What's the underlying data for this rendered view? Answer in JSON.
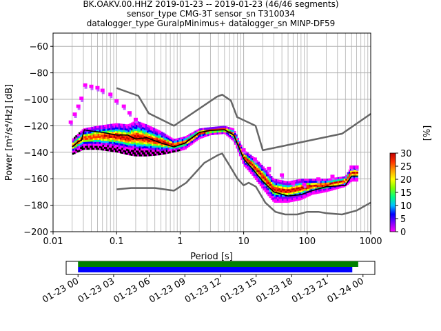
{
  "chart_data": {
    "type": "heatmap",
    "title_lines": [
      "BK.OAKV.00.HHZ   2019-01-23 -- 2019-01-23  (46/46 segments)",
      "sensor_type CMG-3T sensor_sn T310034",
      "datalogger_type GuralpMinimus+ datalogger_sn MINP-DF59"
    ],
    "xlabel": "Period [s]",
    "ylabel": "Power [m²/s⁴/Hz] [dB]",
    "x_scale": "log",
    "xlim": [
      0.01,
      1000
    ],
    "ylim": [
      -200,
      -50
    ],
    "x_ticks": [
      {
        "value": 0.01,
        "label": "0.01"
      },
      {
        "value": 0.1,
        "label": "0.1"
      },
      {
        "value": 1,
        "label": "1"
      },
      {
        "value": 10,
        "label": "10"
      },
      {
        "value": 100,
        "label": "100"
      },
      {
        "value": 1000,
        "label": "1000"
      }
    ],
    "y_ticks": [
      {
        "value": -60,
        "label": "−60"
      },
      {
        "value": -80,
        "label": "−80"
      },
      {
        "value": -100,
        "label": "−100"
      },
      {
        "value": -120,
        "label": "−120"
      },
      {
        "value": -140,
        "label": "−140"
      },
      {
        "value": -160,
        "label": "−160"
      },
      {
        "value": -180,
        "label": "−180"
      },
      {
        "value": -200,
        "label": "−200"
      }
    ],
    "grid": true,
    "colorbar": {
      "label": "[%]",
      "range": [
        0,
        30
      ],
      "ticks": [
        "0",
        "5",
        "10",
        "15",
        "20",
        "25",
        "30"
      ],
      "colors": [
        "#ff00ff",
        "#8000ff",
        "#0000ff",
        "#00c0ff",
        "#00ff80",
        "#80ff00",
        "#ffff00",
        "#ffa000",
        "#ff3000",
        "#c00000"
      ]
    },
    "nlnm": {
      "name": "NLNM",
      "color": "#666666",
      "points": [
        [
          0.1,
          -168
        ],
        [
          0.17,
          -167
        ],
        [
          0.4,
          -167
        ],
        [
          0.8,
          -169
        ],
        [
          1.25,
          -163
        ],
        [
          2.4,
          -148
        ],
        [
          4.0,
          -142
        ],
        [
          4.6,
          -141
        ],
        [
          6.0,
          -150
        ],
        [
          8.0,
          -160
        ],
        [
          10.0,
          -165
        ],
        [
          12.0,
          -163
        ],
        [
          15.6,
          -166
        ],
        [
          21.9,
          -178
        ],
        [
          31.6,
          -185
        ],
        [
          45,
          -187
        ],
        [
          70,
          -187
        ],
        [
          100,
          -185
        ],
        [
          150,
          -185
        ],
        [
          200,
          -186
        ],
        [
          354,
          -187
        ],
        [
          600,
          -184
        ],
        [
          1000,
          -178
        ]
      ]
    },
    "nhnm": {
      "name": "NHNM",
      "color": "#666666",
      "points": [
        [
          0.1,
          -91.5
        ],
        [
          0.22,
          -97.4
        ],
        [
          0.32,
          -110.5
        ],
        [
          0.8,
          -120
        ],
        [
          3.8,
          -98
        ],
        [
          4.6,
          -96.5
        ],
        [
          6.3,
          -101
        ],
        [
          7.9,
          -113.5
        ],
        [
          15.4,
          -120
        ],
        [
          20,
          -138.5
        ],
        [
          354,
          -126
        ],
        [
          1000,
          -111
        ]
      ]
    },
    "mode_line": {
      "name": "mode",
      "color": "#000000",
      "points": [
        [
          0.02,
          -136
        ],
        [
          0.025,
          -132
        ],
        [
          0.028,
          -131
        ],
        [
          0.031,
          -123
        ],
        [
          0.04,
          -124
        ],
        [
          0.06,
          -125
        ],
        [
          0.1,
          -127
        ],
        [
          0.15,
          -127
        ],
        [
          0.2,
          -130
        ],
        [
          0.3,
          -129
        ],
        [
          0.5,
          -133
        ],
        [
          0.8,
          -136
        ],
        [
          1.2,
          -133
        ],
        [
          2.0,
          -125
        ],
        [
          3.0,
          -123.5
        ],
        [
          5.0,
          -123
        ],
        [
          7.0,
          -127
        ],
        [
          10.0,
          -145
        ],
        [
          14.0,
          -153
        ],
        [
          20.0,
          -162
        ],
        [
          30.0,
          -170
        ],
        [
          50.0,
          -173
        ],
        [
          80.0,
          -172
        ],
        [
          120,
          -169
        ],
        [
          200,
          -166
        ],
        [
          400,
          -165
        ],
        [
          500,
          -158
        ],
        [
          630,
          -158
        ]
      ]
    },
    "density_band": {
      "description": "probability density band, colored by percentage",
      "points": [
        [
          0.02,
          -142,
          -130
        ],
        [
          0.03,
          -138,
          -122
        ],
        [
          0.05,
          -138,
          -120
        ],
        [
          0.1,
          -140,
          -118
        ],
        [
          0.15,
          -142,
          -119
        ],
        [
          0.2,
          -143,
          -116
        ],
        [
          0.3,
          -143,
          -119
        ],
        [
          0.5,
          -142,
          -124
        ],
        [
          0.8,
          -140,
          -130
        ],
        [
          1.2,
          -138,
          -128
        ],
        [
          2.0,
          -130,
          -122
        ],
        [
          3.0,
          -127,
          -121
        ],
        [
          5.0,
          -126,
          -120
        ],
        [
          7.0,
          -132,
          -122
        ],
        [
          10.0,
          -150,
          -138
        ],
        [
          14.0,
          -158,
          -143
        ],
        [
          20.0,
          -168,
          -150
        ],
        [
          30.0,
          -178,
          -160
        ],
        [
          50.0,
          -178,
          -162
        ],
        [
          80.0,
          -176,
          -160
        ],
        [
          120,
          -172,
          -160
        ],
        [
          200,
          -170,
          -160
        ],
        [
          400,
          -166,
          -158
        ],
        [
          500,
          -162,
          -150
        ],
        [
          630,
          -162,
          -150
        ]
      ]
    },
    "outliers": {
      "description": "low-probability outlier cells (magenta)",
      "points": [
        [
          0.019,
          -117
        ],
        [
          0.022,
          -111
        ],
        [
          0.025,
          -105
        ],
        [
          0.028,
          -99
        ],
        [
          0.032,
          -89
        ],
        [
          0.04,
          -90
        ],
        [
          0.05,
          -91
        ],
        [
          0.06,
          -93
        ],
        [
          0.08,
          -96
        ],
        [
          0.1,
          -101
        ],
        [
          0.13,
          -105
        ],
        [
          0.16,
          -110
        ],
        [
          0.2,
          -115
        ],
        [
          10,
          -138
        ],
        [
          15,
          -145
        ],
        [
          25,
          -152
        ],
        [
          40,
          -157
        ],
        [
          60,
          -163
        ],
        [
          90,
          -164
        ],
        [
          150,
          -160
        ],
        [
          250,
          -158
        ],
        [
          500,
          -151
        ],
        [
          600,
          -151
        ]
      ]
    },
    "timeline": {
      "tick_labels": [
        "01-23 00",
        "01-23 03",
        "01-23 06",
        "01-23 09",
        "01-23 12",
        "01-23 15",
        "01-23 18",
        "01-23 21",
        "01-24 00"
      ],
      "range_hours": [
        -1,
        25
      ],
      "bars": [
        {
          "name": "data coverage",
          "color": "#008000",
          "start": 0,
          "end": 23.6
        },
        {
          "name": "segments used",
          "color": "#0000ff",
          "start": 0,
          "end": 23.1
        }
      ]
    }
  }
}
